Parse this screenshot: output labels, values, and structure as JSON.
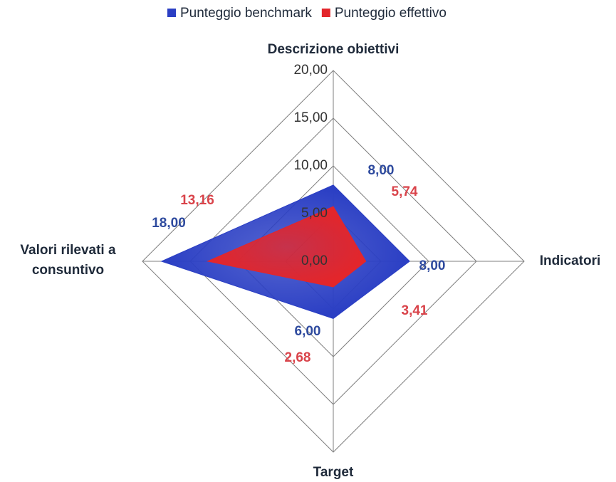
{
  "chart_data": {
    "type": "radar",
    "categories": [
      "Descrizione obiettivi",
      "Indicatori",
      "Target",
      "Valori rilevati a consuntivo"
    ],
    "series": [
      {
        "name": "Punteggio benchmark",
        "color": "#2b3fc4",
        "values": [
          8,
          8,
          6,
          18
        ],
        "value_labels": [
          "8,00",
          "8,00",
          "6,00",
          "18,00"
        ],
        "label_color": "#2e4a9e"
      },
      {
        "name": "Punteggio effettivo",
        "color": "#e3262b",
        "values": [
          5.74,
          3.41,
          2.68,
          13.16
        ],
        "value_labels": [
          "5,74",
          "3,41",
          "2,68",
          "13,16"
        ],
        "label_color": "#d9434a"
      }
    ],
    "ylim": [
      0,
      20
    ],
    "yticks": [
      {
        "value": 0,
        "label": "0,00"
      },
      {
        "value": 5,
        "label": "5,00"
      },
      {
        "value": 10,
        "label": "10,00"
      },
      {
        "value": 15,
        "label": "15,00"
      },
      {
        "value": 20,
        "label": "20,00"
      }
    ],
    "grid": true,
    "legend": "top"
  }
}
